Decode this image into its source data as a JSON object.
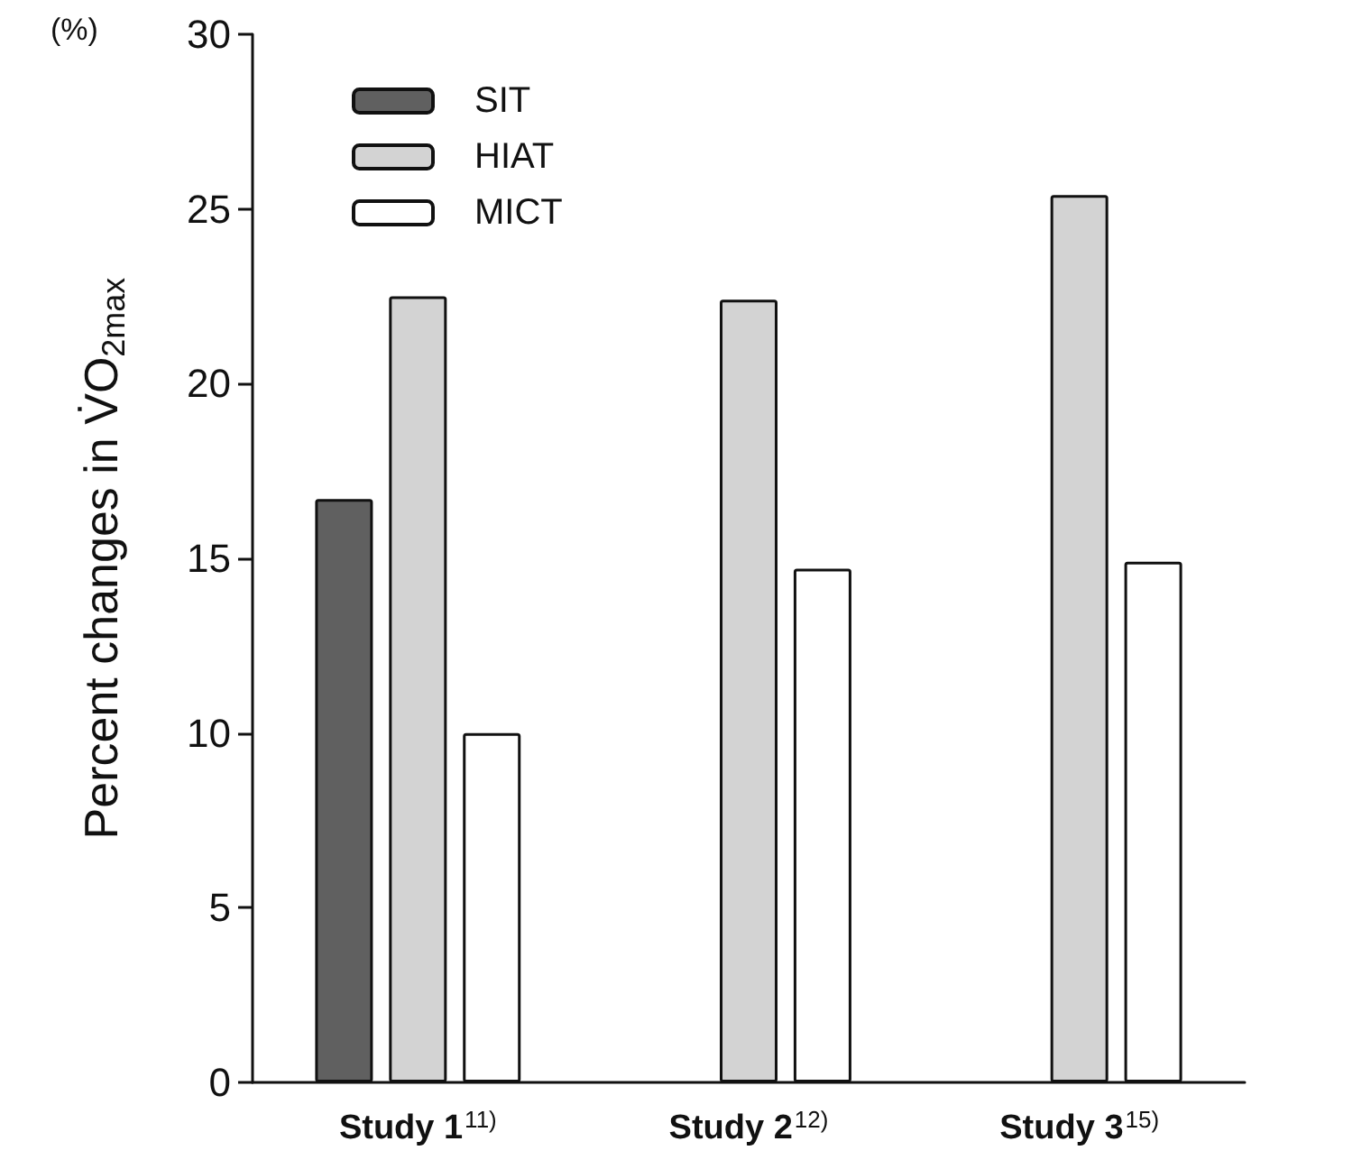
{
  "chart_data": {
    "type": "bar",
    "ylabel": "Percent changes in V̇O$_{2max}$",
    "annotations": [
      "(%)"
    ],
    "categories": [
      "Study 1$^{11)}$",
      "Study 2$^{12)}$",
      "Study 3$^{15)}$"
    ],
    "series": [
      {
        "name": "SIT",
        "color": "#606060",
        "values": [
          16.7,
          null,
          null
        ]
      },
      {
        "name": "HIAT",
        "color": "#d3d3d3",
        "values": [
          22.5,
          22.4,
          25.4
        ]
      },
      {
        "name": "MICT",
        "color": "#ffffff",
        "values": [
          10.0,
          14.7,
          14.9
        ]
      }
    ],
    "ylim": [
      0,
      30
    ],
    "yticks": [
      0,
      5,
      10,
      15,
      20,
      25,
      30
    ],
    "grid": false,
    "legend": "top left"
  }
}
